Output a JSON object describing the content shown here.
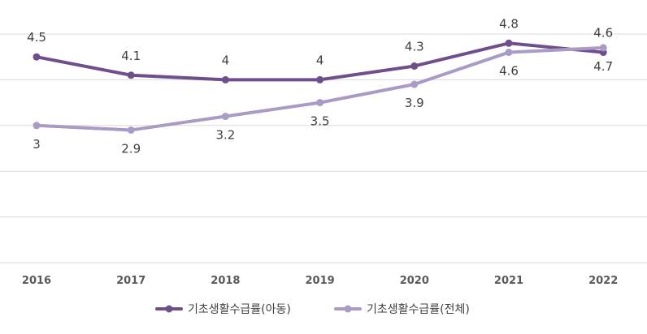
{
  "chart_data": {
    "type": "line",
    "categories": [
      "2016",
      "2017",
      "2018",
      "2019",
      "2020",
      "2021",
      "2022"
    ],
    "ylim": [
      0,
      5
    ],
    "grid": true,
    "legend_position": "bottom",
    "series": [
      {
        "name": "기초생활수급률(아동)",
        "color": "#6e4f8c",
        "values": [
          4.5,
          4.1,
          4,
          4,
          4.3,
          4.8,
          4.6
        ],
        "labels": [
          "4.5",
          "4.1",
          "4",
          "4",
          "4.3",
          "4.8",
          "4.6"
        ]
      },
      {
        "name": "기초생활수급률(전체)",
        "color": "#a99bc6",
        "values": [
          3,
          2.9,
          3.2,
          3.5,
          3.9,
          4.6,
          4.7
        ],
        "labels": [
          "3",
          "2.9",
          "3.2",
          "3.5",
          "3.9",
          "4.6",
          "4.7"
        ]
      }
    ]
  }
}
